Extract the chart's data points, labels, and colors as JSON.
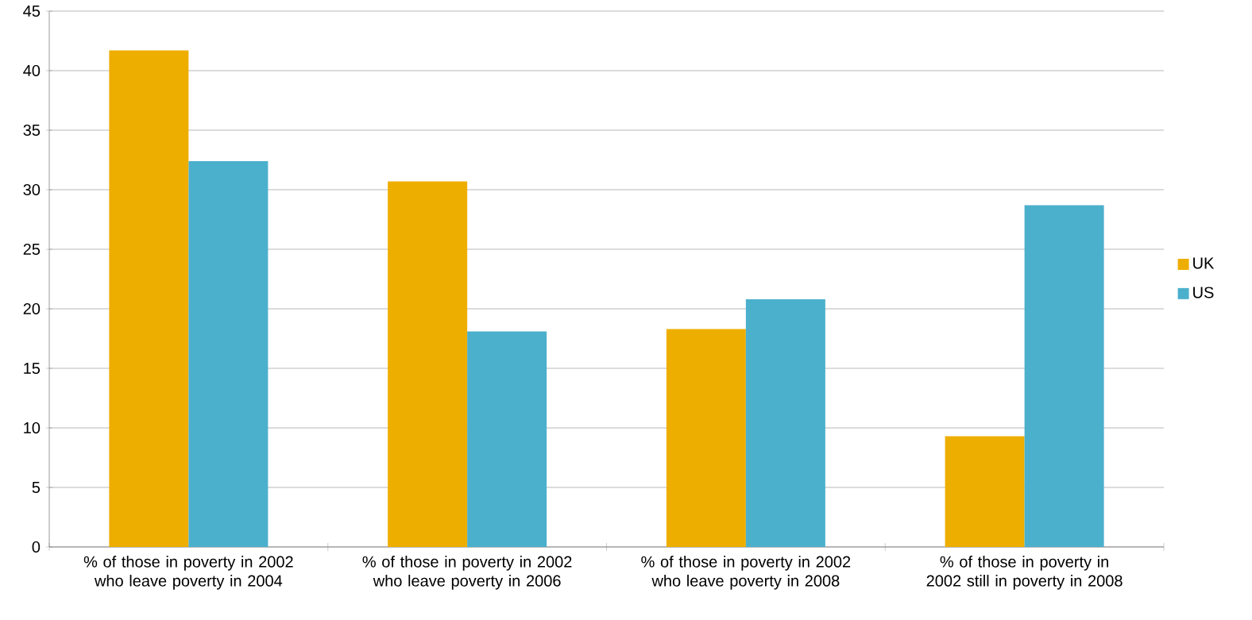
{
  "chart_data": {
    "type": "bar",
    "categories": [
      "% of those in poverty in 2002 who leave poverty in 2004",
      "% of those in poverty in 2002 who leave poverty in 2006",
      "% of those in poverty in 2002 who leave poverty in 2008",
      "% of those in poverty in 2002 still in poverty in 2008"
    ],
    "series": [
      {
        "name": "UK",
        "color": "#eeae00",
        "values": [
          41.7,
          30.7,
          18.3,
          9.3
        ]
      },
      {
        "name": "US",
        "color": "#4bb0cc",
        "values": [
          32.4,
          18.1,
          20.8,
          28.7
        ]
      }
    ],
    "ylim": [
      0,
      45
    ],
    "yticks": [
      0,
      5,
      10,
      15,
      20,
      25,
      30,
      35,
      40,
      45
    ],
    "grid": "y",
    "legend": "right"
  }
}
